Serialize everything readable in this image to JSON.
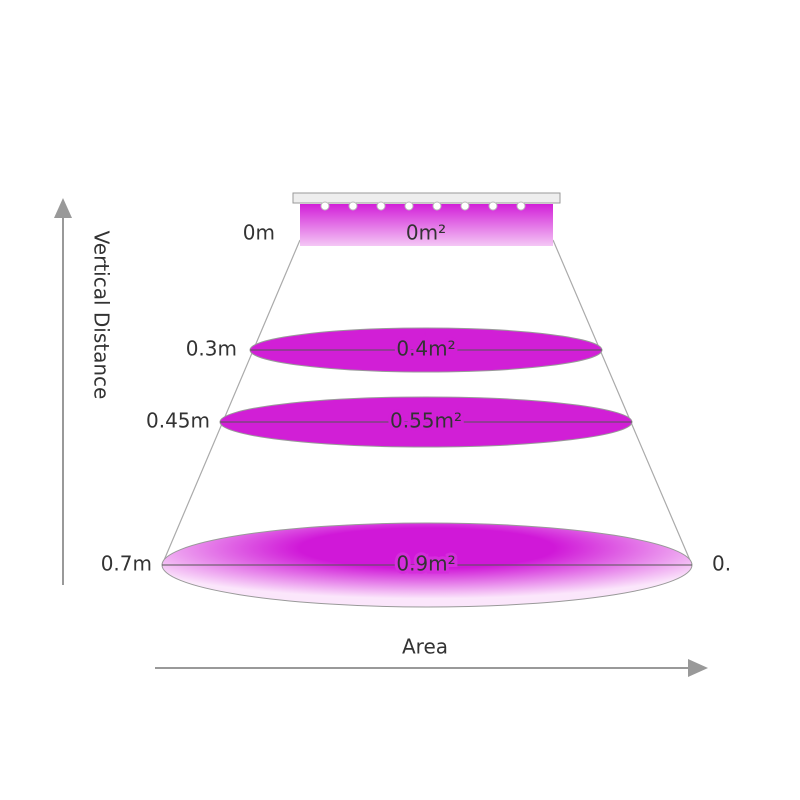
{
  "axes": {
    "vertical": "Vertical Distance",
    "horizontal": "Area"
  },
  "levels": [
    {
      "distance": "0m",
      "area": "0m²"
    },
    {
      "distance": "0.3m",
      "area": "0.4m²"
    },
    {
      "distance": "0.45m",
      "area": "0.55m²"
    },
    {
      "distance": "0.7m",
      "area": "0.9m²"
    }
  ],
  "edge_label": "0."
}
